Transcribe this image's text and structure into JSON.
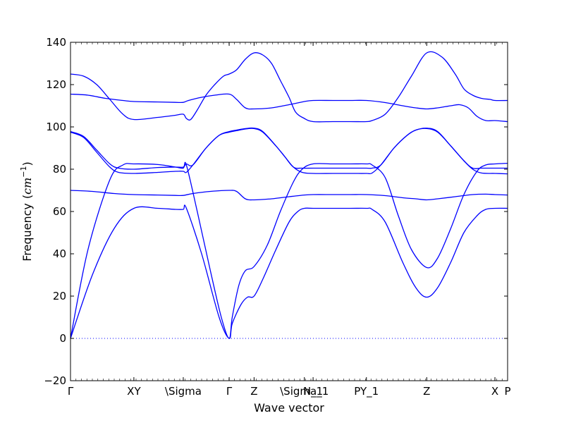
{
  "chart_data": {
    "type": "line",
    "title": "",
    "xlabel": "Wave vector",
    "ylabel": "Frequency",
    "ylabel_unit": "cm",
    "ylabel_unit_exp": "−1",
    "xlim": [
      0,
      100
    ],
    "ylim": [
      -20,
      140
    ],
    "y_ticks": [
      -20,
      0,
      20,
      40,
      60,
      80,
      100,
      120,
      140
    ],
    "x_ticks": [
      {
        "label": "Γ",
        "x": 0
      },
      {
        "label": "XY",
        "x": 14.5
      },
      {
        "label": "\\Sigma",
        "x": 25.8
      },
      {
        "label": "Γ",
        "x": 36.3
      },
      {
        "label": "Z",
        "x": 42
      },
      {
        "label": "\\Sigma_1",
        "x": 53.5
      },
      {
        "label": "N_1",
        "x": 55.5
      },
      {
        "label": "PY_1",
        "x": 67.7
      },
      {
        "label": "Z",
        "x": 81.5
      },
      {
        "label": "X",
        "x": 97.1
      },
      {
        "label": "P",
        "x": 100
      }
    ],
    "zero_line": {
      "y": 0,
      "style": "dotted"
    },
    "grid": false,
    "line_color": "#0000ff",
    "branches": [
      {
        "x": [
          0,
          5,
          10,
          14.5,
          20,
          24,
          25.8,
          26.5,
          30,
          34,
          36.3,
          37,
          39,
          40.5,
          42,
          44,
          47,
          50,
          52,
          53.5,
          55.5,
          60,
          64,
          67.7,
          69,
          72,
          76,
          79,
          81.5,
          84,
          87,
          90,
          93,
          95,
          97.1,
          100
        ],
        "y": [
          0,
          30,
          52,
          61.5,
          61.5,
          61,
          61,
          61.6,
          40,
          10,
          0,
          7,
          16,
          19.5,
          20,
          28,
          42,
          55,
          60,
          61.5,
          61.5,
          61.5,
          61.5,
          61.5,
          61,
          55,
          36,
          24,
          19.5,
          24,
          36,
          50,
          58,
          61,
          61.5,
          61.5
        ]
      },
      {
        "x": [
          0,
          4,
          9,
          12,
          14.5,
          20,
          24,
          25.8,
          26.5,
          29,
          32,
          34.5,
          36.3,
          37,
          38.5,
          40,
          42,
          45,
          48,
          51,
          53,
          55.5,
          60,
          64,
          67.7,
          69,
          72,
          75,
          78,
          81.5,
          84,
          87,
          90,
          93,
          95,
          97.1,
          100
        ],
        "y": [
          0,
          42,
          75,
          82,
          82.5,
          82.2,
          81,
          80.5,
          82,
          60,
          32,
          10,
          0,
          10,
          25,
          32,
          34,
          44,
          60,
          74,
          80,
          82.5,
          82.5,
          82.5,
          82.5,
          82,
          76,
          58,
          42,
          33.5,
          38,
          52,
          68,
          79,
          82,
          82.5,
          82.8
        ]
      },
      {
        "x": [
          0,
          3,
          6,
          9,
          11,
          14.5,
          20,
          24,
          25.8,
          26.5,
          28,
          31,
          34,
          36.3,
          38,
          40,
          42,
          44,
          47,
          49,
          51,
          53,
          55.5,
          60,
          64,
          67.7,
          69,
          71,
          74,
          77,
          79,
          81.5,
          84,
          87,
          90,
          92,
          94,
          97.1,
          100
        ],
        "y": [
          97.5,
          95,
          88,
          81,
          78.5,
          78,
          78.5,
          79,
          79,
          78.5,
          82,
          90,
          96,
          97.5,
          98.2,
          99,
          99.2,
          97.5,
          91,
          86,
          81,
          78.5,
          78,
          78,
          78,
          78,
          78.2,
          82,
          90,
          96,
          98.5,
          99.2,
          97.5,
          91,
          84,
          80,
          78.2,
          78,
          77.8
        ]
      },
      {
        "x": [
          0,
          3,
          6,
          9,
          11,
          14.5,
          20,
          24,
          25.8,
          26.5,
          28,
          31,
          34,
          36.3,
          38,
          40,
          42,
          44,
          47,
          49,
          51,
          53,
          55.5,
          60,
          64,
          67.7,
          69,
          71,
          74,
          77,
          79,
          81.5,
          84,
          87,
          90,
          92,
          94,
          97.1,
          100
        ],
        "y": [
          97.8,
          95.5,
          89,
          82.5,
          80.5,
          80,
          80.8,
          81,
          81,
          82.5,
          82,
          90,
          96,
          97.8,
          98.5,
          99.2,
          99.4,
          97.8,
          91,
          86,
          81,
          80.5,
          80.5,
          80.5,
          80.5,
          80.5,
          80.5,
          82,
          90,
          96,
          98.5,
          99.4,
          97.8,
          91,
          84,
          80.5,
          80.5,
          80.5,
          80.5
        ]
      },
      {
        "x": [
          0,
          5,
          10,
          14.5,
          20,
          24,
          25.8,
          28,
          32,
          36.3,
          38,
          40,
          42,
          46,
          50,
          53.5,
          55.5,
          60,
          64,
          67.7,
          72,
          76,
          79,
          81.5,
          84,
          88,
          92,
          95,
          97.1,
          100
        ],
        "y": [
          70,
          69.5,
          68.5,
          68,
          67.8,
          67.6,
          67.6,
          68.5,
          69.5,
          70,
          69.5,
          66,
          65.5,
          66,
          67,
          67.8,
          68,
          68,
          68,
          68,
          67.5,
          66.5,
          66,
          65.5,
          66,
          67,
          68,
          68.2,
          68,
          67.8
        ]
      },
      {
        "x": [
          0,
          4,
          8,
          12,
          14.5,
          20,
          24,
          25.8,
          27,
          30,
          33,
          36.3,
          38,
          40,
          42,
          46,
          50,
          53.5,
          55.5,
          60,
          64,
          67.7,
          72,
          76,
          79,
          81.5,
          84,
          87,
          89,
          91,
          93,
          95,
          97.1,
          100
        ],
        "y": [
          115.5,
          115,
          113.5,
          112.5,
          112,
          111.8,
          111.6,
          111.6,
          112.5,
          114,
          115,
          115.5,
          113,
          109,
          108.5,
          109,
          110.5,
          112,
          112.5,
          112.5,
          112.5,
          112.5,
          111.5,
          110,
          109,
          108.5,
          109,
          110,
          110.5,
          109,
          105,
          103,
          103,
          102.5
        ]
      },
      {
        "x": [
          0,
          3,
          6,
          9,
          12,
          14.5,
          20,
          24,
          25.8,
          26.5,
          27.5,
          29,
          31,
          33,
          35,
          36.3,
          38,
          40,
          42,
          44,
          46,
          48,
          50,
          51.5,
          53.5,
          55.5,
          60,
          64,
          67.7,
          69,
          72,
          75,
          78,
          81.5,
          85,
          88,
          90,
          92,
          94,
          96,
          97.1,
          100
        ],
        "y": [
          125,
          124,
          120,
          113,
          106,
          103.5,
          104.5,
          105.5,
          106,
          104,
          103.5,
          108,
          115,
          120,
          124,
          125,
          127,
          132,
          135,
          134,
          130,
          122,
          114,
          107,
          104,
          102.5,
          102.5,
          102.5,
          102.5,
          103,
          106,
          114,
          124,
          135,
          133,
          125,
          118,
          115,
          113.5,
          113,
          112.5,
          112.5
        ]
      }
    ]
  }
}
